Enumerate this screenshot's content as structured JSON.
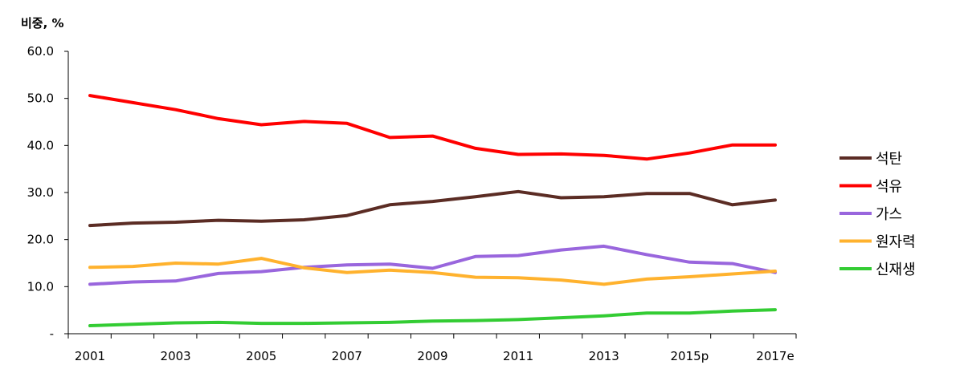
{
  "chart_data": {
    "type": "line",
    "title": "",
    "xlabel": "",
    "ylabel": "비중, %",
    "ylim": [
      0,
      60
    ],
    "yticks": [
      "-",
      "10.0",
      "20.0",
      "30.0",
      "40.0",
      "50.0",
      "60.0"
    ],
    "x": [
      "2001",
      "2002",
      "2003",
      "2004",
      "2005",
      "2006",
      "2007",
      "2008",
      "2009",
      "2010",
      "2011",
      "2012",
      "2013",
      "2014",
      "2015p",
      "2016",
      "2017e"
    ],
    "xtick_labels": [
      "2001",
      "2003",
      "2005",
      "2007",
      "2009",
      "2011",
      "2013",
      "2015p",
      "2017e"
    ],
    "grid": false,
    "legend_position": "right",
    "series": [
      {
        "name": "석탄",
        "color": "#5b2c24",
        "values": [
          23.0,
          23.5,
          23.7,
          24.1,
          23.9,
          24.2,
          25.1,
          27.4,
          28.1,
          29.1,
          30.2,
          28.9,
          29.1,
          29.8,
          29.8,
          27.4,
          28.4
        ]
      },
      {
        "name": "석유",
        "color": "#ff0000",
        "values": [
          50.6,
          49.1,
          47.6,
          45.7,
          44.4,
          45.1,
          44.7,
          41.7,
          42.0,
          39.4,
          38.1,
          38.2,
          37.9,
          37.1,
          38.4,
          40.1,
          40.1
        ]
      },
      {
        "name": "가스",
        "color": "#9966dd",
        "values": [
          10.5,
          11.0,
          11.2,
          12.8,
          13.2,
          14.1,
          14.6,
          14.8,
          13.9,
          16.4,
          16.6,
          17.8,
          18.6,
          16.8,
          15.2,
          14.9,
          13.0
        ]
      },
      {
        "name": "원자력",
        "color": "#ffb22e",
        "values": [
          14.1,
          14.3,
          15.0,
          14.8,
          16.0,
          14.0,
          13.0,
          13.5,
          13.0,
          12.0,
          11.9,
          11.4,
          10.5,
          11.6,
          12.1,
          12.7,
          13.3
        ]
      },
      {
        "name": "신재생",
        "color": "#33cc33",
        "values": [
          1.7,
          2.0,
          2.3,
          2.4,
          2.2,
          2.2,
          2.3,
          2.4,
          2.7,
          2.8,
          3.0,
          3.4,
          3.8,
          4.4,
          4.4,
          4.8,
          5.1
        ]
      }
    ]
  }
}
